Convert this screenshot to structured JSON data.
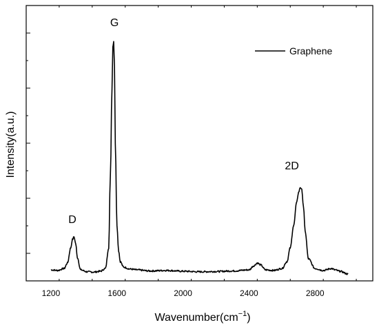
{
  "chart_data": {
    "type": "line",
    "xlabel": "Wavenumber(cm",
    "xlabel_sup": "−1",
    "xlabel_close": ")",
    "ylabel": "Intensity(a.u.)",
    "xlim": [
      1050,
      3150
    ],
    "ylim": [
      0,
      1000
    ],
    "xticks": [
      1200,
      1600,
      2000,
      2400,
      2800
    ],
    "yticks_labeled": false,
    "grid": false,
    "legend": {
      "position": "top-right"
    },
    "series": [
      {
        "name": "Graphene",
        "color": "#000000",
        "x": [
          1200,
          1240,
          1280,
          1300,
          1320,
          1330,
          1340,
          1350,
          1360,
          1380,
          1420,
          1460,
          1500,
          1530,
          1550,
          1560,
          1570,
          1575,
          1580,
          1585,
          1590,
          1600,
          1610,
          1620,
          1640,
          1680,
          1720,
          1800,
          1900,
          2000,
          2100,
          2200,
          2300,
          2400,
          2430,
          2450,
          2470,
          2500,
          2550,
          2600,
          2630,
          2650,
          2670,
          2690,
          2700,
          2710,
          2720,
          2730,
          2740,
          2760,
          2800,
          2850,
          2900,
          2920,
          2950,
          3000
        ],
        "y": [
          40,
          38,
          45,
          65,
          120,
          150,
          160,
          135,
          85,
          40,
          33,
          32,
          35,
          45,
          120,
          380,
          700,
          850,
          870,
          780,
          500,
          200,
          110,
          70,
          50,
          43,
          40,
          36,
          38,
          35,
          33,
          34,
          36,
          40,
          55,
          65,
          58,
          40,
          38,
          45,
          70,
          120,
          200,
          290,
          320,
          340,
          330,
          270,
          180,
          80,
          45,
          38,
          45,
          40,
          35,
          25
        ]
      }
    ],
    "annotations": [
      {
        "text": "D",
        "x": 1330,
        "y": 210
      },
      {
        "text": "G",
        "x": 1585,
        "y": 925
      },
      {
        "text": "2D",
        "x": 2660,
        "y": 405
      }
    ]
  }
}
